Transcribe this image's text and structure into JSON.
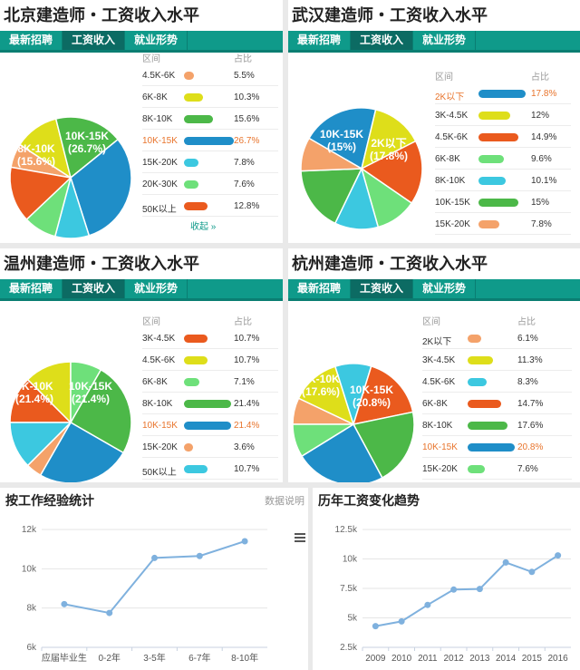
{
  "panels": [
    {
      "title": "北京建造师・工资收入水平",
      "tabs": [
        "最新招聘",
        "工资收入",
        "就业形势"
      ],
      "active_tab": 1,
      "legend_header": [
        "区间",
        "占比"
      ],
      "more_label": "收起 »",
      "pie_labels": [
        {
          "range": "10K-15K",
          "pct": "(26.7%)"
        },
        {
          "range": "8K-10K",
          "pct": "(15.6%)"
        }
      ]
    },
    {
      "title": "武汉建造师・工资收入水平",
      "tabs": [
        "最新招聘",
        "工资收入",
        "就业形势"
      ],
      "active_tab": 1,
      "legend_header": [
        "区间",
        "占比"
      ],
      "more_label": "",
      "pie_labels": [
        {
          "range": "10K-15K",
          "pct": "(15%)"
        },
        {
          "range": "2K以下",
          "pct": "(17.8%)"
        }
      ]
    },
    {
      "title": "温州建造师・工资收入水平",
      "tabs": [
        "最新招聘",
        "工资收入",
        "就业形势"
      ],
      "active_tab": 1,
      "legend_header": [
        "区间",
        "占比"
      ],
      "more_label": "",
      "pie_labels": [
        {
          "range": "8K-10K",
          "pct": "(21.4%)"
        },
        {
          "range": "10K-15K",
          "pct": "(21.4%)"
        }
      ]
    },
    {
      "title": "杭州建造师・工资收入水平",
      "tabs": [
        "最新招聘",
        "工资收入",
        "就业形势"
      ],
      "active_tab": 1,
      "legend_header": [
        "区间",
        "占比"
      ],
      "more_label": "",
      "pie_labels": [
        {
          "range": "8K-10K",
          "pct": "(17.6%)"
        },
        {
          "range": "10K-15K",
          "pct": "(20.8%)"
        }
      ]
    }
  ],
  "bottom_left": {
    "title": "按工作经验统计",
    "note": "数据说明"
  },
  "bottom_right": {
    "title": "历年工资变化趋势"
  },
  "chart_data": [
    {
      "type": "pie",
      "title": "北京建造师・工资收入水平",
      "highlight": "10K-15K",
      "slices": [
        {
          "label": "4.5K-6K",
          "value": 5.5,
          "text": "5.5%",
          "color": "#f4a26a"
        },
        {
          "label": "6K-8K",
          "value": 10.3,
          "text": "10.3%",
          "color": "#dede1a"
        },
        {
          "label": "8K-10K",
          "value": 15.6,
          "text": "15.6%",
          "color": "#4cb848"
        },
        {
          "label": "10K-15K",
          "value": 26.7,
          "text": "26.7%",
          "color": "#1f8ec8"
        },
        {
          "label": "15K-20K",
          "value": 7.8,
          "text": "7.8%",
          "color": "#3cc8e0"
        },
        {
          "label": "20K-30K",
          "value": 7.6,
          "text": "7.6%",
          "color": "#6ee07a"
        },
        {
          "label": "50K以上",
          "value": 12.8,
          "text": "12.8%",
          "color": "#ea5a1e"
        }
      ]
    },
    {
      "type": "pie",
      "title": "武汉建造师・工资收入水平",
      "highlight": "2K以下",
      "slices": [
        {
          "label": "2K以下",
          "value": 17.8,
          "text": "17.8%",
          "color": "#1f8ec8"
        },
        {
          "label": "3K-4.5K",
          "value": 12,
          "text": "12%",
          "color": "#dede1a"
        },
        {
          "label": "4.5K-6K",
          "value": 14.9,
          "text": "14.9%",
          "color": "#ea5a1e"
        },
        {
          "label": "6K-8K",
          "value": 9.6,
          "text": "9.6%",
          "color": "#6ee07a"
        },
        {
          "label": "8K-10K",
          "value": 10.1,
          "text": "10.1%",
          "color": "#3cc8e0"
        },
        {
          "label": "10K-15K",
          "value": 15,
          "text": "15%",
          "color": "#4cb848"
        },
        {
          "label": "15K-20K",
          "value": 7.8,
          "text": "7.8%",
          "color": "#f4a26a"
        }
      ]
    },
    {
      "type": "pie",
      "title": "温州建造师・工资收入水平",
      "highlight": "10K-15K",
      "slices": [
        {
          "label": "3K-4.5K",
          "value": 10.7,
          "text": "10.7%",
          "color": "#ea5a1e"
        },
        {
          "label": "4.5K-6K",
          "value": 10.7,
          "text": "10.7%",
          "color": "#dede1a"
        },
        {
          "label": "6K-8K",
          "value": 7.1,
          "text": "7.1%",
          "color": "#6ee07a"
        },
        {
          "label": "8K-10K",
          "value": 21.4,
          "text": "21.4%",
          "color": "#4cb848"
        },
        {
          "label": "10K-15K",
          "value": 21.4,
          "text": "21.4%",
          "color": "#1f8ec8"
        },
        {
          "label": "15K-20K",
          "value": 3.6,
          "text": "3.6%",
          "color": "#f4a26a"
        },
        {
          "label": "50K以上",
          "value": 10.7,
          "text": "10.7%",
          "color": "#3cc8e0"
        }
      ]
    },
    {
      "type": "pie",
      "title": "杭州建造师・工资收入水平",
      "highlight": "10K-15K",
      "slices": [
        {
          "label": "2K以下",
          "value": 6.1,
          "text": "6.1%",
          "color": "#f4a26a"
        },
        {
          "label": "3K-4.5K",
          "value": 11.3,
          "text": "11.3%",
          "color": "#dede1a"
        },
        {
          "label": "4.5K-6K",
          "value": 8.3,
          "text": "8.3%",
          "color": "#3cc8e0"
        },
        {
          "label": "6K-8K",
          "value": 14.7,
          "text": "14.7%",
          "color": "#ea5a1e"
        },
        {
          "label": "8K-10K",
          "value": 17.6,
          "text": "17.6%",
          "color": "#4cb848"
        },
        {
          "label": "10K-15K",
          "value": 20.8,
          "text": "20.8%",
          "color": "#1f8ec8"
        },
        {
          "label": "15K-20K",
          "value": 7.6,
          "text": "7.6%",
          "color": "#6ee07a"
        }
      ]
    },
    {
      "type": "line",
      "title": "按工作经验统计",
      "categories": [
        "应届毕业生",
        "0-2年",
        "3-5年",
        "6-7年",
        "8-10年"
      ],
      "values": [
        8200,
        7750,
        10550,
        10650,
        11400
      ],
      "yticks": [
        "6k",
        "8k",
        "10k",
        "12k"
      ],
      "ylim": [
        6000,
        12000
      ],
      "grid": true,
      "color": "#7fb1de"
    },
    {
      "type": "line",
      "title": "历年工资变化趋势",
      "categories": [
        "2009",
        "2010",
        "2011",
        "2012",
        "2013",
        "2014",
        "2015",
        "2016"
      ],
      "values": [
        4300,
        4700,
        6100,
        7400,
        7450,
        9700,
        8900,
        10300
      ],
      "yticks": [
        "2.5k",
        "5k",
        "7.5k",
        "10k",
        "12.5k"
      ],
      "ylim": [
        2500,
        12500
      ],
      "grid": true,
      "color": "#7fb1de"
    }
  ]
}
